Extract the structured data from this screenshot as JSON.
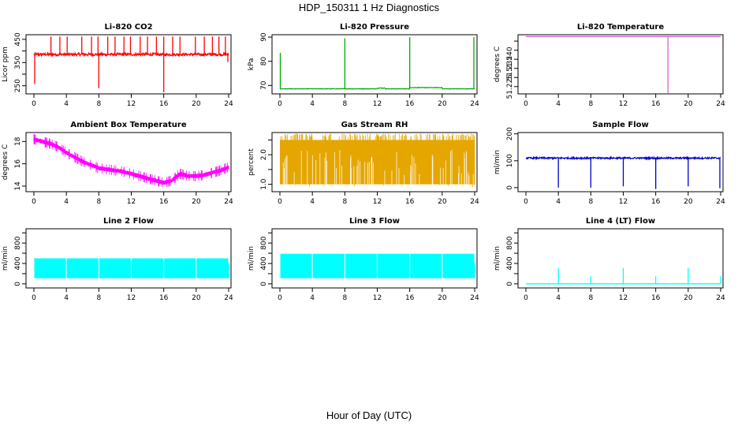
{
  "figure": {
    "title": "HDP_150311  1 Hz Diagnostics",
    "xlabel": "Hour of Day (UTC)"
  },
  "chart_data": [
    {
      "type": "line",
      "title": "Li-820 CO2",
      "ylabel": "Licor ppm",
      "color": "#ff0000",
      "xlim": [
        0,
        24
      ],
      "xticks": [
        0,
        4,
        8,
        12,
        16,
        20,
        24
      ],
      "ylim": [
        215,
        470
      ],
      "yticks": [
        250,
        300,
        350,
        400,
        450
      ],
      "ytick_labels": [
        "250",
        "",
        "350",
        "",
        "450"
      ],
      "baseline": 385,
      "noise": 6,
      "spikes_up": [
        2.1,
        3.2,
        4.1,
        5.9,
        7.1,
        7.9,
        9.1,
        10.0,
        11.1,
        11.9,
        13.1,
        14.0,
        15.1,
        16.0,
        17.1,
        18.0,
        19.9,
        21.0,
        22.0,
        22.8,
        23.6
      ],
      "spikes_up_value": 462,
      "spikes_down": [
        [
          0.1,
          258
        ],
        [
          8.0,
          240
        ],
        [
          16.0,
          222
        ],
        [
          23.9,
          352
        ]
      ],
      "series_name": ""
    },
    {
      "type": "line",
      "title": "Li-820 Pressure",
      "ylabel": "kPa",
      "color": "#00aa00",
      "xlim": [
        0,
        24
      ],
      "xticks": [
        0,
        4,
        8,
        12,
        16,
        20,
        24
      ],
      "ylim": [
        66.5,
        91
      ],
      "yticks": [
        70,
        80,
        90
      ],
      "ytick_labels": [
        "70",
        "80",
        "90"
      ],
      "baseline": 68.6,
      "noise": 0.1,
      "spikes_up": [
        [
          0.05,
          83.5
        ],
        [
          8.0,
          89.5
        ],
        [
          16.0,
          90.0
        ],
        [
          23.9,
          90.0
        ]
      ],
      "bumps": [
        [
          12,
          13,
          0.3
        ],
        [
          16,
          20,
          0.5
        ]
      ],
      "series_name": ""
    },
    {
      "type": "line",
      "title": "Li-820 Temperature",
      "ylabel": "degrees C",
      "color": "#cc33cc",
      "xlim": [
        0,
        24
      ],
      "xticks": [
        0,
        4,
        8,
        12,
        16,
        20,
        24
      ],
      "ylim": [
        51.221,
        51.2535
      ],
      "yticks": [
        51.225,
        51.23,
        51.235,
        51.24,
        51.245,
        51.25
      ],
      "ytick_labels": [
        "51.225",
        "",
        "51.235",
        "51.240",
        "",
        ""
      ],
      "baseline": 51.2525,
      "drop": [
        17.5,
        51.2215
      ],
      "series_name": ""
    },
    {
      "type": "line",
      "title": "Ambient Box Temperature",
      "ylabel": "degrees C",
      "color": "#ff00ff",
      "xlim": [
        0,
        24
      ],
      "xticks": [
        0,
        4,
        8,
        12,
        16,
        20,
        24
      ],
      "ylim": [
        13.5,
        18.8
      ],
      "yticks": [
        14,
        16,
        18
      ],
      "ytick_labels": [
        "14",
        "16",
        "18"
      ],
      "x": [
        0,
        1,
        2,
        3,
        4,
        5,
        6,
        7,
        8,
        9,
        10,
        11,
        12,
        13,
        14,
        15,
        16,
        17,
        18,
        19,
        20,
        21,
        22,
        23,
        24
      ],
      "values": [
        18.2,
        18.0,
        17.8,
        17.5,
        17.0,
        16.6,
        16.2,
        15.9,
        15.6,
        15.5,
        15.4,
        15.3,
        15.1,
        14.9,
        14.7,
        14.5,
        14.3,
        14.5,
        15.1,
        14.9,
        14.9,
        15.0,
        15.2,
        15.4,
        15.7
      ],
      "noise": 0.35,
      "series_name": ""
    },
    {
      "type": "line",
      "title": "Gas Stream RH",
      "ylabel": "percent",
      "color": "#e6a600",
      "xlim": [
        0,
        24
      ],
      "xticks": [
        0,
        4,
        8,
        12,
        16,
        20,
        24
      ],
      "ylim": [
        0.75,
        2.75
      ],
      "yticks": [
        1.0,
        1.5,
        2.0,
        2.5
      ],
      "ytick_labels": [
        "1.0",
        "",
        "2.0",
        ""
      ],
      "band_top": 2.5,
      "band_bottom": 1.0,
      "series_name": ""
    },
    {
      "type": "line",
      "title": "Sample Flow",
      "ylabel": "ml/min",
      "color": "#0000cc",
      "xlim": [
        0,
        24
      ],
      "xticks": [
        0,
        4,
        8,
        12,
        16,
        20,
        24
      ],
      "ylim": [
        -15,
        205
      ],
      "yticks": [
        0,
        100,
        200
      ],
      "ytick_labels": [
        "0",
        "100",
        "200"
      ],
      "baseline": 110,
      "noise": 3,
      "drops": [
        [
          4.0,
          0
        ],
        [
          8.0,
          0
        ],
        [
          12.0,
          5
        ],
        [
          16.0,
          -5
        ],
        [
          20.0,
          5
        ],
        [
          23.9,
          -2
        ]
      ],
      "series_name": ""
    },
    {
      "type": "line",
      "title": "Line 2 Flow",
      "ylabel": "ml/min",
      "color": "#00ffff",
      "xlim": [
        0,
        24
      ],
      "xticks": [
        0,
        4,
        8,
        12,
        16,
        20,
        24
      ],
      "ylim": [
        -80,
        1080
      ],
      "yticks": [
        0,
        200,
        400,
        600,
        800,
        1000
      ],
      "ytick_labels": [
        "0",
        "",
        "400",
        "",
        "800",
        ""
      ],
      "band_top": 500,
      "band_bottom": 110,
      "gaps": [
        4,
        8,
        12,
        16,
        20
      ],
      "series_name": ""
    },
    {
      "type": "line",
      "title": "Line 3 Flow",
      "ylabel": "ml/min",
      "color": "#00ffff",
      "xlim": [
        0,
        24
      ],
      "xticks": [
        0,
        4,
        8,
        12,
        16,
        20,
        24
      ],
      "ylim": [
        -80,
        1080
      ],
      "yticks": [
        0,
        200,
        400,
        600,
        800,
        1000
      ],
      "ytick_labels": [
        "0",
        "",
        "400",
        "",
        "800",
        ""
      ],
      "band_top": 590,
      "band_bottom": 110,
      "gaps": [
        4,
        8,
        12,
        16,
        20
      ],
      "series_name": ""
    },
    {
      "type": "line",
      "title": "Line 4 (LT) Flow",
      "ylabel": "ml/min",
      "color": "#00ffff",
      "xlim": [
        0,
        24
      ],
      "xticks": [
        0,
        4,
        8,
        12,
        16,
        20,
        24
      ],
      "ylim": [
        -80,
        1080
      ],
      "yticks": [
        0,
        200,
        400,
        600,
        800,
        1000
      ],
      "ytick_labels": [
        "0",
        "",
        "400",
        "",
        "800",
        ""
      ],
      "baseline": 0,
      "spikes_up": [
        [
          4.0,
          310
        ],
        [
          8.0,
          150
        ],
        [
          12.0,
          310
        ],
        [
          16.0,
          150
        ],
        [
          20.0,
          310
        ],
        [
          24.0,
          150
        ]
      ],
      "series_name": ""
    }
  ]
}
